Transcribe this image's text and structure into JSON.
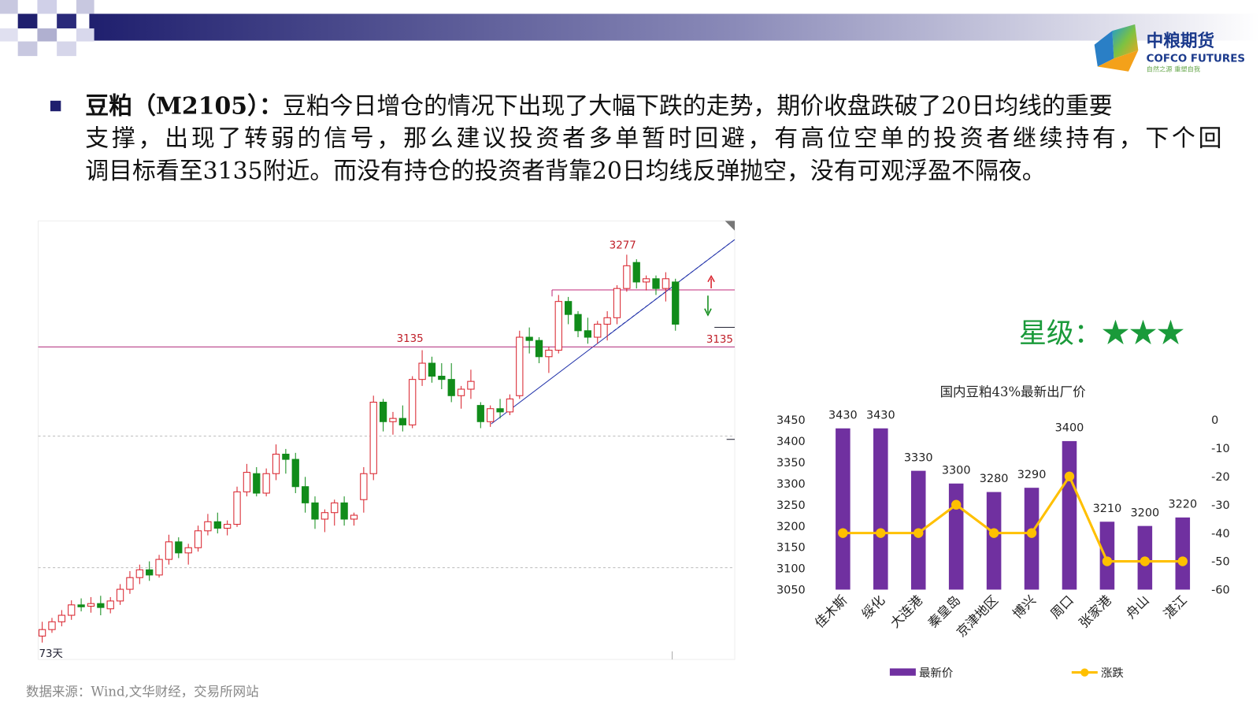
{
  "logo": {
    "name": "中粮期货",
    "english": "COFCO FUTURES",
    "slogan": "自然之源 重塑自我"
  },
  "paragraph": {
    "lead": "豆粕（M2105）：",
    "lines": [
      "豆粕今日增仓的情况下出现了大幅下跌的走势，期价收盘跌破了20日均线的重要",
      "支撑，出现了转弱的信号，那么建议投资者多单暂时回避，有高位空单的投资者继续持有，下个回",
      "调目标看至3135附近。而没有持仓的投资者背靠20日均线反弹抛空，没有可观浮盈不隔夜。"
    ]
  },
  "rating": "星级：★★★",
  "source": "数据来源：Wind,文华财经，交易所网站",
  "chart_data": [
    {
      "type": "candlestick",
      "annotations": {
        "high": "3277",
        "support": "3135",
        "support_right": "3135",
        "days": "73天"
      },
      "support_level": 3135,
      "ylim": [
        2654,
        3329
      ],
      "up_color": "#d9232d",
      "down_color": "#118c1a",
      "ohlc": [
        [
          2690,
          2712,
          2680,
          2700
        ],
        [
          2700,
          2718,
          2695,
          2712
        ],
        [
          2712,
          2730,
          2705,
          2722
        ],
        [
          2722,
          2745,
          2715,
          2738
        ],
        [
          2738,
          2748,
          2728,
          2735
        ],
        [
          2736,
          2750,
          2726,
          2740
        ],
        [
          2740,
          2752,
          2722,
          2734
        ],
        [
          2732,
          2750,
          2725,
          2744
        ],
        [
          2744,
          2770,
          2738,
          2762
        ],
        [
          2762,
          2790,
          2755,
          2780
        ],
        [
          2780,
          2800,
          2770,
          2792
        ],
        [
          2792,
          2805,
          2775,
          2784
        ],
        [
          2784,
          2815,
          2780,
          2808
        ],
        [
          2808,
          2846,
          2800,
          2835
        ],
        [
          2835,
          2842,
          2810,
          2818
        ],
        [
          2818,
          2832,
          2800,
          2826
        ],
        [
          2826,
          2860,
          2820,
          2852
        ],
        [
          2852,
          2878,
          2845,
          2866
        ],
        [
          2866,
          2880,
          2848,
          2856
        ],
        [
          2856,
          2868,
          2845,
          2862
        ],
        [
          2862,
          2920,
          2858,
          2912
        ],
        [
          2912,
          2955,
          2905,
          2942
        ],
        [
          2940,
          2950,
          2905,
          2910
        ],
        [
          2910,
          2948,
          2905,
          2940
        ],
        [
          2940,
          2985,
          2930,
          2970
        ],
        [
          2970,
          2978,
          2940,
          2962
        ],
        [
          2962,
          2972,
          2910,
          2920
        ],
        [
          2920,
          2935,
          2880,
          2895
        ],
        [
          2895,
          2905,
          2855,
          2870
        ],
        [
          2870,
          2885,
          2850,
          2880
        ],
        [
          2880,
          2900,
          2860,
          2895
        ],
        [
          2895,
          2905,
          2860,
          2870
        ],
        [
          2870,
          2880,
          2860,
          2876
        ],
        [
          2900,
          2950,
          2880,
          2940
        ],
        [
          2940,
          3060,
          2930,
          3050
        ],
        [
          3050,
          3055,
          3005,
          3020
        ],
        [
          3020,
          3035,
          3000,
          3025
        ],
        [
          3025,
          3045,
          3005,
          3015
        ],
        [
          3015,
          3090,
          3010,
          3085
        ],
        [
          3085,
          3130,
          3075,
          3110
        ],
        [
          3110,
          3120,
          3080,
          3090
        ],
        [
          3090,
          3110,
          3070,
          3085
        ],
        [
          3085,
          3110,
          3050,
          3060
        ],
        [
          3060,
          3075,
          3040,
          3070
        ],
        [
          3070,
          3100,
          3055,
          3082
        ],
        [
          3045,
          3050,
          3010,
          3020
        ],
        [
          3020,
          3045,
          3012,
          3040
        ],
        [
          3040,
          3055,
          3025,
          3035
        ],
        [
          3035,
          3062,
          3030,
          3055
        ],
        [
          3060,
          3160,
          3055,
          3150
        ],
        [
          3150,
          3165,
          3125,
          3145
        ],
        [
          3145,
          3150,
          3110,
          3120
        ],
        [
          3120,
          3135,
          3095,
          3130
        ],
        [
          3130,
          3215,
          3125,
          3205
        ],
        [
          3205,
          3212,
          3170,
          3185
        ],
        [
          3185,
          3190,
          3150,
          3160
        ],
        [
          3160,
          3180,
          3140,
          3150
        ],
        [
          3150,
          3175,
          3140,
          3170
        ],
        [
          3170,
          3190,
          3145,
          3180
        ],
        [
          3180,
          3230,
          3170,
          3225
        ],
        [
          3225,
          3277,
          3220,
          3260
        ],
        [
          3265,
          3270,
          3225,
          3235
        ],
        [
          3235,
          3245,
          3222,
          3240
        ],
        [
          3240,
          3245,
          3215,
          3225
        ],
        [
          3225,
          3250,
          3205,
          3240
        ],
        [
          3235,
          3240,
          3160,
          3170
        ]
      ]
    },
    {
      "type": "bar-line",
      "title": "国内豆粕43%最新出厂价",
      "categories": [
        "佳木斯",
        "绥化",
        "大连港",
        "秦皇岛",
        "京津地区",
        "博兴",
        "周口",
        "张家港",
        "舟山",
        "湛江"
      ],
      "series": [
        {
          "name": "最新价",
          "color": "#7030a0",
          "values": [
            3430,
            3430,
            3330,
            3300,
            3280,
            3290,
            3400,
            3210,
            3200,
            3220
          ]
        },
        {
          "name": "涨跌",
          "color": "#ffc000",
          "axis": "y2",
          "values": [
            -40,
            -40,
            -40,
            -30,
            -40,
            -40,
            -20,
            -50,
            -50,
            -50
          ]
        }
      ],
      "ylim": [
        3050,
        3450
      ],
      "yticks": [
        3050,
        3100,
        3150,
        3200,
        3250,
        3300,
        3350,
        3400,
        3450
      ],
      "y2lim": [
        -60,
        0
      ],
      "y2ticks": [
        -60,
        -50,
        -40,
        -30,
        -20,
        -10,
        0
      ],
      "legend": "bottom"
    }
  ]
}
